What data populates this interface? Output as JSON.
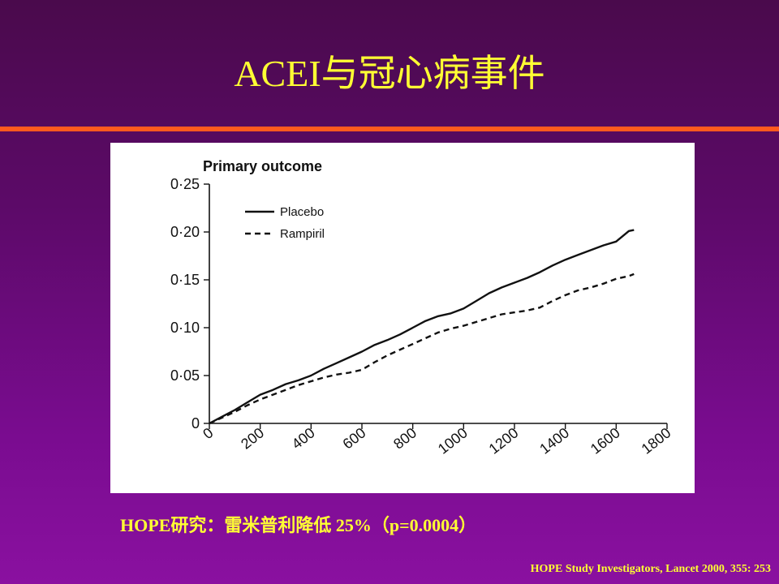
{
  "slide": {
    "title": "ACEI与冠心病事件",
    "caption": "HOPE研究：雷米普利降低 25%（p=0.0004）",
    "citation": "HOPE Study Investigators, Lancet 2000, 355: 253",
    "colors": {
      "title": "#ffff33",
      "rule": "#ff5a1e",
      "background": "#5c0a68"
    }
  },
  "chart_data": {
    "type": "line",
    "title": "Primary outcome",
    "xlabel": "",
    "ylabel": "",
    "xlim": [
      0,
      1800
    ],
    "ylim": [
      0,
      0.25
    ],
    "x_ticks": [
      "0",
      "200",
      "400",
      "600",
      "800",
      "1000",
      "1200",
      "1400",
      "1600",
      "1800"
    ],
    "y_ticks": [
      "0",
      "0·05",
      "0·10",
      "0·15",
      "0·20",
      "0·25"
    ],
    "legend_position": "top-left",
    "series": [
      {
        "name": "Placebo",
        "style": "solid",
        "points": [
          [
            0,
            0
          ],
          [
            50,
            0.007
          ],
          [
            100,
            0.014
          ],
          [
            150,
            0.022
          ],
          [
            200,
            0.03
          ],
          [
            250,
            0.035
          ],
          [
            300,
            0.041
          ],
          [
            350,
            0.045
          ],
          [
            400,
            0.05
          ],
          [
            450,
            0.057
          ],
          [
            500,
            0.063
          ],
          [
            550,
            0.069
          ],
          [
            600,
            0.075
          ],
          [
            650,
            0.082
          ],
          [
            700,
            0.087
          ],
          [
            750,
            0.093
          ],
          [
            800,
            0.1
          ],
          [
            850,
            0.107
          ],
          [
            900,
            0.112
          ],
          [
            950,
            0.115
          ],
          [
            1000,
            0.12
          ],
          [
            1050,
            0.128
          ],
          [
            1100,
            0.136
          ],
          [
            1150,
            0.142
          ],
          [
            1200,
            0.147
          ],
          [
            1250,
            0.152
          ],
          [
            1300,
            0.158
          ],
          [
            1350,
            0.165
          ],
          [
            1400,
            0.171
          ],
          [
            1450,
            0.176
          ],
          [
            1500,
            0.181
          ],
          [
            1550,
            0.186
          ],
          [
            1600,
            0.19
          ],
          [
            1650,
            0.201
          ],
          [
            1670,
            0.202
          ]
        ]
      },
      {
        "name": "Rampiril",
        "style": "dashed",
        "points": [
          [
            0,
            0
          ],
          [
            50,
            0.006
          ],
          [
            100,
            0.012
          ],
          [
            150,
            0.019
          ],
          [
            200,
            0.025
          ],
          [
            250,
            0.03
          ],
          [
            300,
            0.035
          ],
          [
            350,
            0.04
          ],
          [
            400,
            0.044
          ],
          [
            450,
            0.048
          ],
          [
            500,
            0.051
          ],
          [
            550,
            0.053
          ],
          [
            600,
            0.056
          ],
          [
            650,
            0.064
          ],
          [
            700,
            0.071
          ],
          [
            750,
            0.077
          ],
          [
            800,
            0.083
          ],
          [
            850,
            0.089
          ],
          [
            900,
            0.095
          ],
          [
            950,
            0.099
          ],
          [
            1000,
            0.102
          ],
          [
            1050,
            0.106
          ],
          [
            1100,
            0.11
          ],
          [
            1150,
            0.114
          ],
          [
            1200,
            0.116
          ],
          [
            1250,
            0.118
          ],
          [
            1300,
            0.121
          ],
          [
            1350,
            0.128
          ],
          [
            1400,
            0.134
          ],
          [
            1450,
            0.139
          ],
          [
            1500,
            0.142
          ],
          [
            1550,
            0.146
          ],
          [
            1600,
            0.151
          ],
          [
            1650,
            0.154
          ],
          [
            1670,
            0.156
          ]
        ]
      }
    ]
  }
}
